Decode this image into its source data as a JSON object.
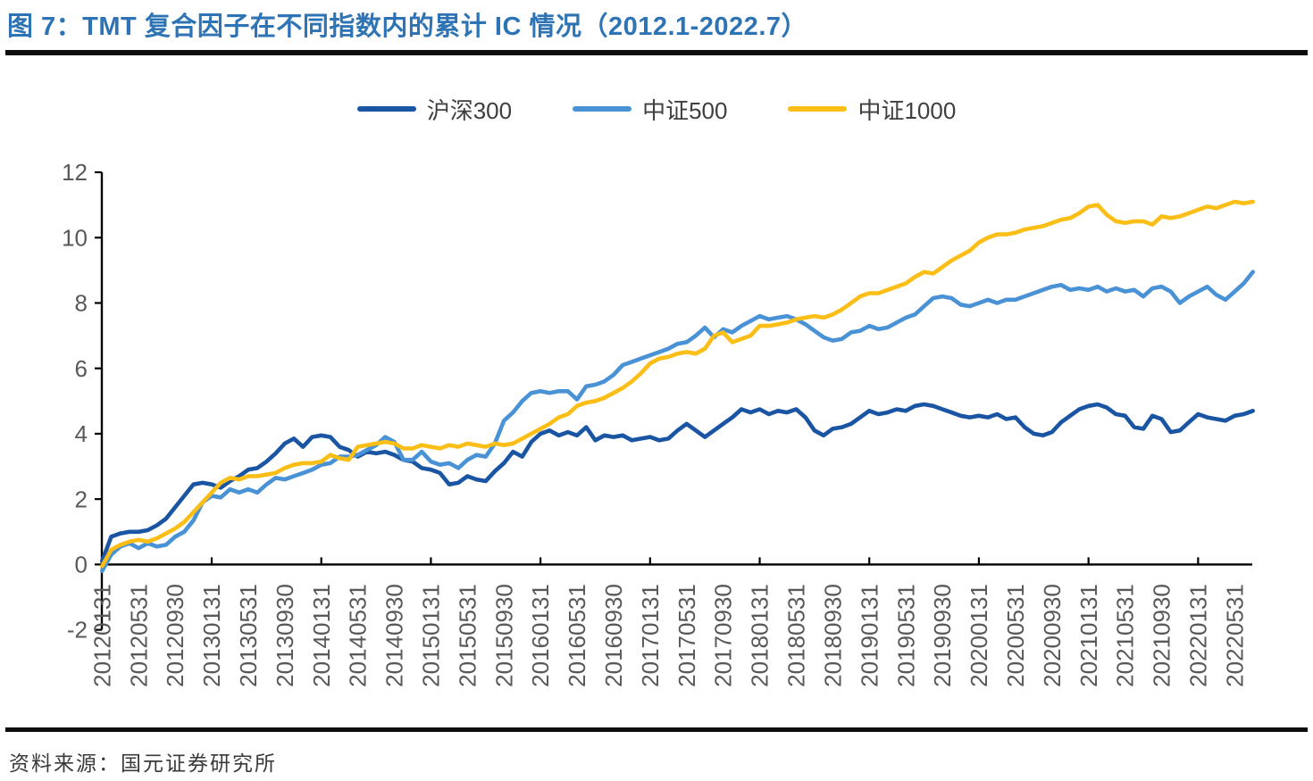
{
  "header": {
    "title": "图 7：TMT 复合因子在不同指数内的累计 IC 情况（2012.1-2022.7）"
  },
  "footer": {
    "source": "资料来源：国元证券研究所"
  },
  "colors": {
    "title": "#2E74B5",
    "rule": "#0D0D0D",
    "axis": "#000000",
    "tick_label": "#595959",
    "legend_text": "#3F3F3F",
    "source_text": "#3A3A3A"
  },
  "chart_data": {
    "type": "line",
    "title": "TMT 复合因子在不同指数内的累计 IC 情况（2012.1-2022.7）",
    "xlabel": "",
    "ylabel": "",
    "ylim": [
      -2,
      12
    ],
    "y_ticks": [
      -2,
      0,
      2,
      4,
      6,
      8,
      10,
      12
    ],
    "grid": false,
    "legend_position": "top-center",
    "x_start_month": "2012-01",
    "x_end_month": "2022-07",
    "points_per_month": 1,
    "x_tick_labels": [
      "20120131",
      "20120531",
      "20120930",
      "20130131",
      "20130531",
      "20130930",
      "20140131",
      "20140531",
      "20140930",
      "20150131",
      "20150531",
      "20150930",
      "20160131",
      "20160531",
      "20160930",
      "20170131",
      "20170531",
      "20170930",
      "20180131",
      "20180531",
      "20180930",
      "20190131",
      "20190531",
      "20190930",
      "20200131",
      "20200531",
      "20200930",
      "20210131",
      "20210531",
      "20210930",
      "20220131",
      "20220531"
    ],
    "series": [
      {
        "name": "沪深300",
        "color": "#1A55A4",
        "values": [
          0.1,
          0.85,
          0.95,
          1.0,
          1.0,
          1.05,
          1.2,
          1.4,
          1.75,
          2.1,
          2.45,
          2.5,
          2.45,
          2.35,
          2.55,
          2.7,
          2.9,
          2.95,
          3.15,
          3.4,
          3.7,
          3.85,
          3.6,
          3.9,
          3.95,
          3.9,
          3.6,
          3.5,
          3.3,
          3.45,
          3.4,
          3.45,
          3.35,
          3.2,
          3.15,
          2.95,
          2.9,
          2.8,
          2.45,
          2.5,
          2.7,
          2.6,
          2.55,
          2.85,
          3.1,
          3.45,
          3.3,
          3.75,
          4.0,
          4.1,
          3.95,
          4.05,
          3.95,
          4.2,
          3.8,
          3.95,
          3.9,
          3.95,
          3.8,
          3.85,
          3.9,
          3.8,
          3.85,
          4.1,
          4.3,
          4.1,
          3.9,
          4.1,
          4.3,
          4.5,
          4.75,
          4.65,
          4.75,
          4.6,
          4.7,
          4.65,
          4.75,
          4.5,
          4.1,
          3.95,
          4.15,
          4.2,
          4.3,
          4.5,
          4.7,
          4.6,
          4.65,
          4.75,
          4.7,
          4.85,
          4.9,
          4.85,
          4.75,
          4.65,
          4.55,
          4.5,
          4.55,
          4.5,
          4.6,
          4.45,
          4.5,
          4.2,
          4.0,
          3.95,
          4.05,
          4.35,
          4.55,
          4.75,
          4.85,
          4.9,
          4.8,
          4.6,
          4.55,
          4.2,
          4.15,
          4.55,
          4.45,
          4.05,
          4.1,
          4.35,
          4.6,
          4.5,
          4.45,
          4.4,
          4.55,
          4.6,
          4.7
        ]
      },
      {
        "name": "中证500",
        "color": "#4A92D6",
        "values": [
          -0.2,
          0.3,
          0.55,
          0.65,
          0.5,
          0.65,
          0.55,
          0.6,
          0.85,
          1.0,
          1.35,
          1.9,
          2.1,
          2.05,
          2.3,
          2.2,
          2.3,
          2.2,
          2.45,
          2.65,
          2.6,
          2.7,
          2.8,
          2.9,
          3.05,
          3.1,
          3.3,
          3.3,
          3.35,
          3.5,
          3.65,
          3.9,
          3.75,
          3.2,
          3.2,
          3.45,
          3.15,
          3.05,
          3.1,
          2.95,
          3.2,
          3.35,
          3.3,
          3.7,
          4.4,
          4.65,
          5.0,
          5.25,
          5.3,
          5.25,
          5.3,
          5.3,
          5.05,
          5.45,
          5.5,
          5.6,
          5.8,
          6.1,
          6.2,
          6.3,
          6.4,
          6.5,
          6.6,
          6.75,
          6.8,
          7.0,
          7.25,
          6.95,
          7.2,
          7.1,
          7.3,
          7.45,
          7.6,
          7.5,
          7.55,
          7.6,
          7.5,
          7.35,
          7.15,
          6.95,
          6.85,
          6.9,
          7.1,
          7.15,
          7.3,
          7.2,
          7.25,
          7.4,
          7.55,
          7.65,
          7.9,
          8.15,
          8.2,
          8.15,
          7.95,
          7.9,
          8.0,
          8.1,
          8.0,
          8.1,
          8.1,
          8.2,
          8.3,
          8.4,
          8.5,
          8.55,
          8.4,
          8.45,
          8.4,
          8.5,
          8.35,
          8.45,
          8.35,
          8.4,
          8.2,
          8.45,
          8.5,
          8.35,
          8.0,
          8.2,
          8.35,
          8.5,
          8.25,
          8.1,
          8.35,
          8.6,
          8.95
        ]
      },
      {
        "name": "中证1000",
        "color": "#FBBE17",
        "values": [
          -0.05,
          0.45,
          0.6,
          0.7,
          0.75,
          0.7,
          0.8,
          0.95,
          1.1,
          1.3,
          1.6,
          1.9,
          2.2,
          2.5,
          2.65,
          2.6,
          2.7,
          2.7,
          2.75,
          2.8,
          2.95,
          3.05,
          3.1,
          3.1,
          3.15,
          3.35,
          3.25,
          3.2,
          3.6,
          3.65,
          3.7,
          3.75,
          3.7,
          3.55,
          3.55,
          3.65,
          3.6,
          3.55,
          3.65,
          3.6,
          3.7,
          3.65,
          3.6,
          3.7,
          3.65,
          3.7,
          3.85,
          4.0,
          4.15,
          4.3,
          4.5,
          4.6,
          4.85,
          4.95,
          5.0,
          5.1,
          5.25,
          5.4,
          5.6,
          5.85,
          6.15,
          6.3,
          6.35,
          6.45,
          6.5,
          6.45,
          6.6,
          7.0,
          7.1,
          6.8,
          6.9,
          7.0,
          7.3,
          7.3,
          7.35,
          7.4,
          7.5,
          7.55,
          7.6,
          7.55,
          7.65,
          7.8,
          8.0,
          8.2,
          8.3,
          8.3,
          8.4,
          8.5,
          8.6,
          8.8,
          8.95,
          8.9,
          9.1,
          9.3,
          9.45,
          9.6,
          9.85,
          10.0,
          10.1,
          10.1,
          10.15,
          10.25,
          10.3,
          10.35,
          10.45,
          10.55,
          10.6,
          10.75,
          10.95,
          11.0,
          10.7,
          10.5,
          10.45,
          10.5,
          10.5,
          10.4,
          10.65,
          10.6,
          10.65,
          10.75,
          10.85,
          10.95,
          10.9,
          11.0,
          11.1,
          11.05,
          11.1
        ]
      }
    ]
  }
}
